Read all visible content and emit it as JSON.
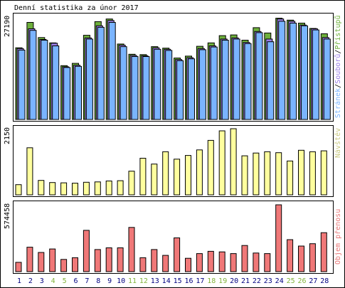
{
  "title": "Denní statistika za únor 2017",
  "colors": {
    "hits": "#6eb03c",
    "files": "#9b80e6",
    "pages": "#7ab4ff",
    "visits": "#ffff9e",
    "kbytes": "#f07878",
    "weekend": "#82b43c",
    "weekday": "#000080",
    "visitsLabel": "#c8c880",
    "kbytesLabel": "#e87878"
  },
  "chart_data": [
    {
      "type": "bar",
      "title": "Denní statistika za únor 2017",
      "categories": [
        "1",
        "2",
        "3",
        "4",
        "5",
        "6",
        "7",
        "8",
        "9",
        "10",
        "11",
        "12",
        "13",
        "14",
        "15",
        "16",
        "17",
        "18",
        "19",
        "20",
        "21",
        "22",
        "23",
        "24",
        "25",
        "26",
        "27",
        "28"
      ],
      "weekend_days": [
        "4",
        "5",
        "11",
        "12",
        "18",
        "19",
        "25",
        "26"
      ],
      "ylim": [
        0,
        27190
      ],
      "ymax_label": "27190",
      "legend": [
        "Přístupů",
        "Souborů",
        "Stránek"
      ],
      "legend_placement": "right",
      "series": [
        {
          "name": "Přístupů",
          "values": [
            18900,
            25600,
            21600,
            20200,
            14200,
            14800,
            22200,
            25800,
            26500,
            19900,
            17200,
            17100,
            19200,
            18800,
            16200,
            16700,
            19300,
            20200,
            22100,
            22300,
            20900,
            24200,
            22800,
            26700,
            26200,
            25400,
            24000,
            22600
          ]
        },
        {
          "name": "Souborů",
          "values": [
            18700,
            23900,
            21100,
            20100,
            13900,
            14300,
            21500,
            24700,
            26100,
            19600,
            16900,
            16800,
            18900,
            18500,
            15800,
            16300,
            18700,
            19400,
            21200,
            21500,
            20300,
            23200,
            21200,
            26500,
            25900,
            24900,
            23900,
            21600
          ]
        },
        {
          "name": "Stránek",
          "values": [
            18300,
            23500,
            20900,
            19400,
            13700,
            14000,
            21200,
            24300,
            25600,
            19200,
            16600,
            16600,
            18500,
            18200,
            15500,
            16000,
            18400,
            19100,
            20900,
            21200,
            20000,
            22900,
            20500,
            25900,
            25400,
            24700,
            23600,
            21200
          ]
        }
      ]
    },
    {
      "type": "bar",
      "categories": [
        "1",
        "2",
        "3",
        "4",
        "5",
        "6",
        "7",
        "8",
        "9",
        "10",
        "11",
        "12",
        "13",
        "14",
        "15",
        "16",
        "17",
        "18",
        "19",
        "20",
        "21",
        "22",
        "23",
        "24",
        "25",
        "26",
        "27",
        "28"
      ],
      "ylim": [
        0,
        2150
      ],
      "ymax_label": "2150",
      "legend": [
        "Návštěv"
      ],
      "legend_placement": "right",
      "series": [
        {
          "name": "Návštěv",
          "values": [
            330,
            1530,
            470,
            400,
            390,
            380,
            410,
            420,
            450,
            460,
            770,
            1190,
            1000,
            1400,
            1160,
            1280,
            1460,
            1770,
            2080,
            2150,
            1270,
            1360,
            1400,
            1370,
            1100,
            1450,
            1400,
            1430
          ]
        }
      ]
    },
    {
      "type": "bar",
      "categories": [
        "1",
        "2",
        "3",
        "4",
        "5",
        "6",
        "7",
        "8",
        "9",
        "10",
        "11",
        "12",
        "13",
        "14",
        "15",
        "16",
        "17",
        "18",
        "19",
        "20",
        "21",
        "22",
        "23",
        "24",
        "25",
        "26",
        "27",
        "28"
      ],
      "ylim": [
        0,
        574458
      ],
      "ymax_label": "574458",
      "legend": [
        "Objem přenosu"
      ],
      "legend_placement": "right",
      "series": [
        {
          "name": "Objem přenosu",
          "values": [
            80000,
            210000,
            165000,
            195000,
            105000,
            120000,
            355000,
            190000,
            205000,
            205000,
            380000,
            120000,
            190000,
            140000,
            290000,
            115000,
            155000,
            175000,
            170000,
            155000,
            225000,
            160000,
            155000,
            574458,
            275000,
            220000,
            240000,
            335000
          ]
        }
      ]
    }
  ]
}
